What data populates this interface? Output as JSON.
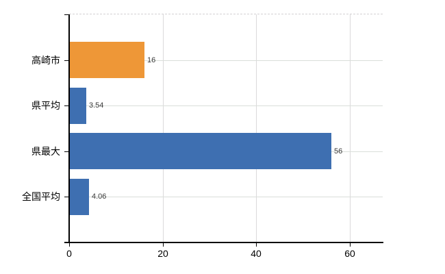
{
  "chart": {
    "background_color": "#ffffff",
    "axis_color": "#000000",
    "gridline_color": "#d9d9d9",
    "top_border_color": "#d2d0d2",
    "category_label_color": "#000000",
    "value_label_color": "#3a3a3a"
  },
  "chart_data": {
    "type": "bar",
    "orientation": "horizontal",
    "title": "",
    "xlabel": "",
    "ylabel": "",
    "legend": "none",
    "grid": "on",
    "categories": [
      "高崎市",
      "県平均",
      "県最大",
      "全国平均"
    ],
    "values": [
      16,
      3.54,
      56,
      4.06
    ],
    "value_labels": [
      "16",
      "3.54",
      "56",
      "4.06"
    ],
    "bar_colors": [
      "#ee9737",
      "#3e6fb1",
      "#3e6fb1",
      "#3e6fb1"
    ],
    "x_ticks": [
      0,
      20,
      40,
      60
    ],
    "x_tick_labels": [
      "0",
      "20",
      "40",
      "60"
    ],
    "xlim": [
      0,
      67
    ]
  }
}
